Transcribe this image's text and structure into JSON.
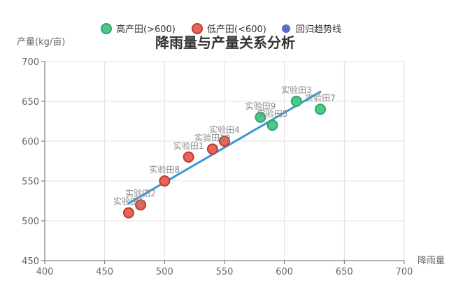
{
  "chart_data": {
    "type": "scatter",
    "title": "降雨量与产量关系分析",
    "xlabel": "降雨量",
    "ylabel": "产量(kg/亩)",
    "xlim": [
      400,
      700
    ],
    "ylim": [
      450,
      700
    ],
    "x_ticks": [
      "400",
      "450",
      "500",
      "550",
      "600",
      "650",
      "700"
    ],
    "y_ticks": [
      "450",
      "500",
      "550",
      "600",
      "650",
      "700"
    ],
    "grid": true,
    "legend_position": "top-center",
    "legend": [
      {
        "name": "高产田(>600)",
        "color": "#4cc98a",
        "stroke": "#2ea866",
        "symbol": "circle"
      },
      {
        "name": "低产田(<600)",
        "color": "#e8645a",
        "stroke": "#c0392b",
        "symbol": "circle"
      },
      {
        "name": "回归趋势线",
        "color": "#5470c6",
        "stroke": "#5470c6",
        "symbol": "circle"
      }
    ],
    "series": [
      {
        "name": "高产田(>600)",
        "points": [
          {
            "label": "实验田3",
            "x": 610,
            "y": 650
          },
          {
            "label": "实验田7",
            "x": 630,
            "y": 640
          },
          {
            "label": "实验田9",
            "x": 580,
            "y": 630
          },
          {
            "label": "实验田5",
            "x": 590,
            "y": 620
          }
        ]
      },
      {
        "name": "低产田(<600)",
        "points": [
          {
            "label": "实验田4",
            "x": 550,
            "y": 600
          },
          {
            "label": "实验田10",
            "x": 540,
            "y": 590
          },
          {
            "label": "实验田1",
            "x": 520,
            "y": 580
          },
          {
            "label": "实验田8",
            "x": 500,
            "y": 550
          },
          {
            "label": "实验田2",
            "x": 480,
            "y": 520
          },
          {
            "label": "实验田6",
            "x": 470,
            "y": 510
          }
        ]
      },
      {
        "name": "回归趋势线",
        "type": "line",
        "color": "#3a98d8",
        "points": [
          {
            "x": 470,
            "y": 522
          },
          {
            "x": 630,
            "y": 662
          }
        ]
      }
    ]
  }
}
